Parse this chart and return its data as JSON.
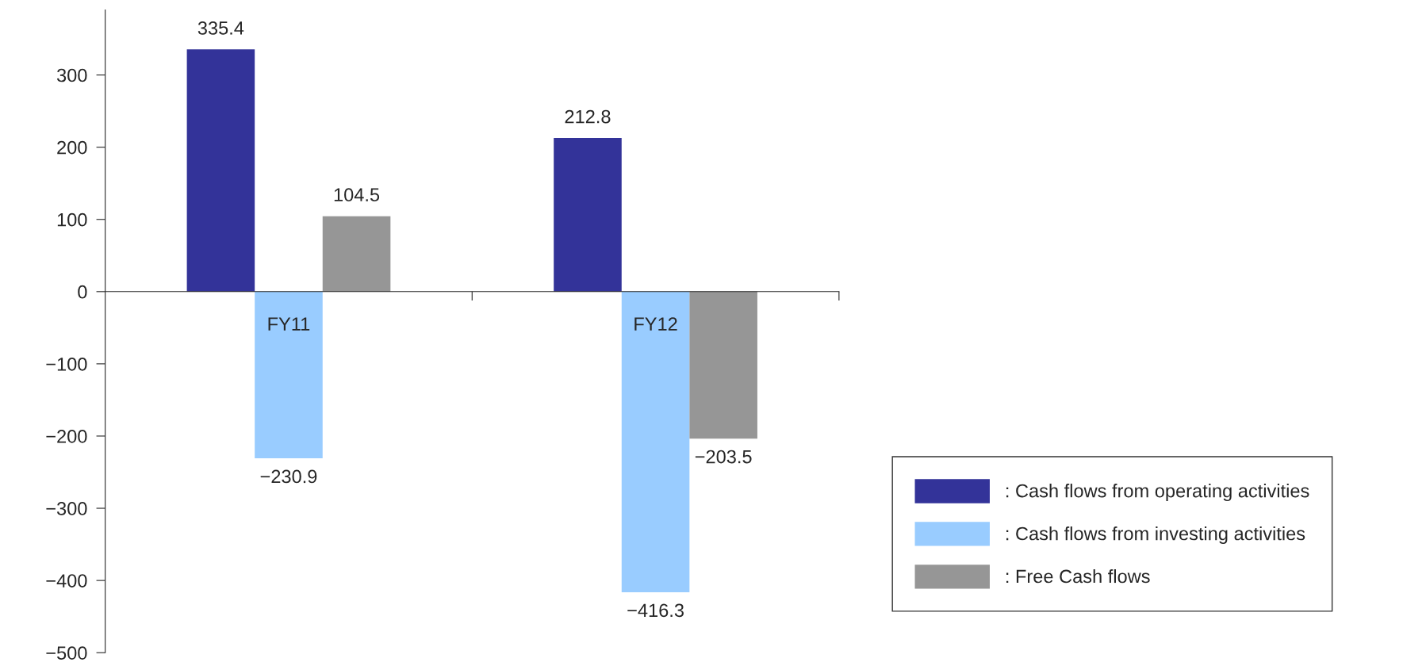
{
  "chart_data": {
    "type": "bar",
    "categories": [
      "FY11",
      "FY12"
    ],
    "series": [
      {
        "name": ": Cash flows from operating activities",
        "color": "#333399",
        "values": [
          335.4,
          212.8
        ],
        "value_labels": [
          "335.4",
          "212.8"
        ]
      },
      {
        "name": ": Cash flows from investing activities",
        "color": "#99ccff",
        "values": [
          -230.9,
          -416.3
        ],
        "value_labels": [
          "−230.9",
          "−416.3"
        ]
      },
      {
        "name": ": Free Cash flows",
        "color": "#969696",
        "values": [
          104.5,
          -203.5
        ],
        "value_labels": [
          "104.5",
          "−203.5"
        ]
      }
    ],
    "ylim": [
      -500,
      390
    ],
    "yticks": [
      {
        "value": -500,
        "label": "−500"
      },
      {
        "value": -400,
        "label": "−400"
      },
      {
        "value": -300,
        "label": "−300"
      },
      {
        "value": -200,
        "label": "−200"
      },
      {
        "value": -100,
        "label": "−100"
      },
      0,
      100,
      200,
      300
    ],
    "grid": false,
    "legend": "right"
  }
}
